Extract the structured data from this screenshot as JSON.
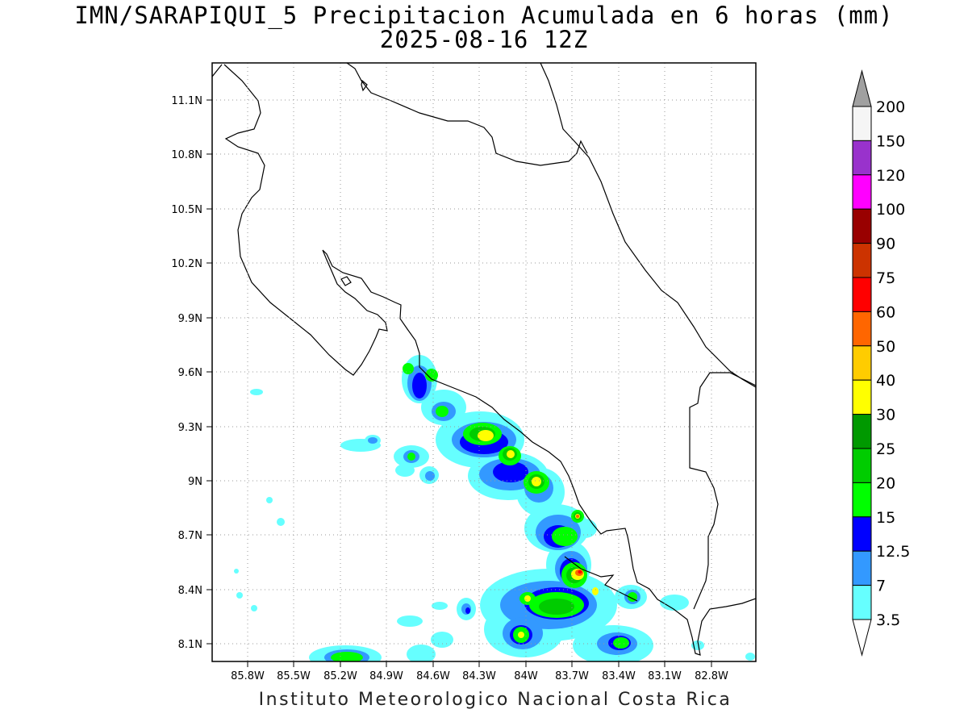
{
  "title_line1": "IMN/SARAPIQUI_5 Precipitacion Acumulada en 6 horas (mm)",
  "title_line2": "2025-08-16 12Z",
  "credit": "Instituto Meteorologico Nacional Costa Rica",
  "map": {
    "lat_range": [
      8.0,
      11.3
    ],
    "lon_range": [
      -86.0,
      -82.5
    ],
    "lat_ticks": [
      "11.1N",
      "10.8N",
      "10.5N",
      "10.2N",
      "9.9N",
      "9.6N",
      "9.3N",
      "9N",
      "8.7N",
      "8.4N",
      "8.1N"
    ],
    "lon_ticks": [
      "85.8W",
      "85.5W",
      "85.2W",
      "84.9W",
      "84.6W",
      "84.3W",
      "84W",
      "83.7W",
      "83.4W",
      "83.1W",
      "82.8W"
    ],
    "grid": "dotted"
  },
  "colorbar": {
    "levels": [
      "200",
      "150",
      "120",
      "100",
      "90",
      "75",
      "60",
      "50",
      "40",
      "30",
      "25",
      "20",
      "15",
      "12.5",
      "7",
      "3.5"
    ],
    "colors": [
      "#f5f5f5",
      "#9932cc",
      "#ff00ff",
      "#990000",
      "#cc3300",
      "#ff0000",
      "#ff6600",
      "#ffcc00",
      "#ffff00",
      "#009900",
      "#00cc00",
      "#00ff00",
      "#0000ff",
      "#3399ff",
      "#66ffff"
    ],
    "top_arrow_color": "#a0a0a0",
    "bottom_arrow_color": "#ffffff"
  }
}
